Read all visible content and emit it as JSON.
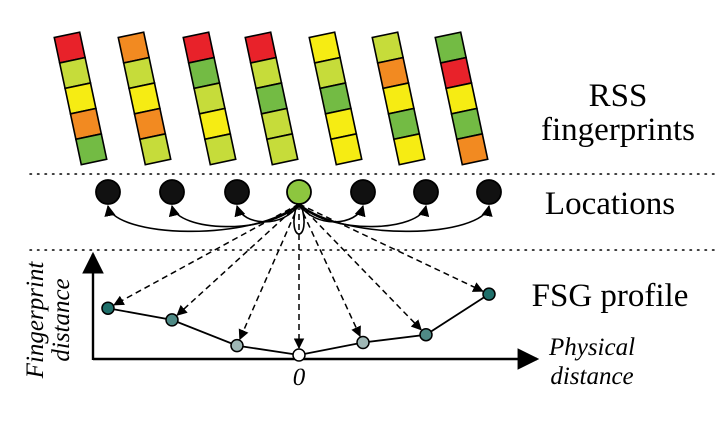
{
  "labels": {
    "rss": [
      "RSS",
      "fingerprints"
    ],
    "locations": "Locations",
    "fsg_profile": "FSG profile",
    "y_axis": [
      "Fingerprint",
      "distance"
    ],
    "x_axis": [
      "Physical",
      "distance"
    ],
    "origin": "0"
  },
  "colors": {
    "red": "#e8222a",
    "orange": "#f28a21",
    "yellow": "#f6ec13",
    "lightgreen": "#c6dc3a",
    "green": "#73bb44",
    "node_black": "#111111",
    "node_current": "#8dc63f",
    "profile_dark": "#1f6f6a",
    "profile_mid": "#4f8a86",
    "profile_light": "#9fb7b5",
    "profile_white": "#ffffff"
  },
  "fingerprints": [
    [
      "red",
      "lightgreen",
      "yellow",
      "orange",
      "green"
    ],
    [
      "orange",
      "lightgreen",
      "yellow",
      "orange",
      "lightgreen"
    ],
    [
      "red",
      "green",
      "lightgreen",
      "yellow",
      "lightgreen"
    ],
    [
      "red",
      "lightgreen",
      "green",
      "lightgreen",
      "lightgreen"
    ],
    [
      "yellow",
      "lightgreen",
      "green",
      "yellow",
      "yellow"
    ],
    [
      "lightgreen",
      "orange",
      "yellow",
      "green",
      "yellow"
    ],
    [
      "green",
      "red",
      "yellow",
      "green",
      "orange"
    ]
  ],
  "locations": [
    "black",
    "black",
    "black",
    "current",
    "black",
    "black",
    "black"
  ],
  "fsg_levels": [
    0.6,
    0.45,
    0.12,
    0.0,
    0.16,
    0.26,
    0.78
  ]
}
